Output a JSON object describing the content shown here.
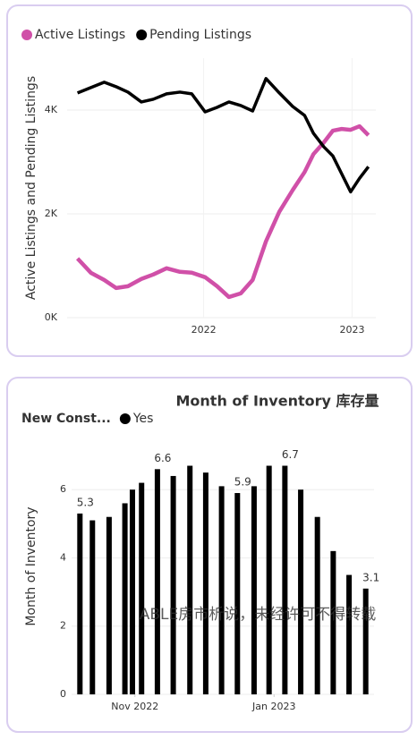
{
  "chart_data": [
    {
      "type": "line",
      "x": [
        2021.15,
        2021.24,
        2021.33,
        2021.41,
        2021.49,
        2021.58,
        2021.66,
        2021.75,
        2021.84,
        2021.92,
        2022.01,
        2022.09,
        2022.17,
        2022.25,
        2022.33,
        2022.42,
        2022.51,
        2022.6,
        2022.68,
        2022.74,
        2022.81,
        2022.87,
        2022.93,
        2022.99,
        2023.05,
        2023.11
      ],
      "series": [
        {
          "name": "Active Listings",
          "color": "#d050a8",
          "values": [
            1140,
            865,
            727,
            571,
            606,
            745,
            831,
            952,
            883,
            866,
            779,
            606,
            398,
            468,
            727,
            1472,
            2043,
            2459,
            2805,
            3152,
            3377,
            3602,
            3636,
            3619,
            3688,
            3515
          ]
        },
        {
          "name": "Pending Listings",
          "color": "#000000",
          "values": [
            4329,
            4433,
            4537,
            4450,
            4346,
            4156,
            4208,
            4312,
            4346,
            4312,
            3965,
            4052,
            4156,
            4087,
            3983,
            4606,
            4329,
            4069,
            3896,
            3550,
            3290,
            3117,
            2771,
            2424,
            2684,
            2909
          ]
        }
      ],
      "y_label": "Active Listings and Pending Listings",
      "xlim": [
        2021.08,
        2023.16
      ],
      "xticks": [
        2022,
        2023
      ],
      "ylim": [
        0,
        5000
      ],
      "yticks": [
        {
          "value": 0,
          "label": "0K"
        },
        {
          "value": 2000,
          "label": "2K"
        },
        {
          "value": 4000,
          "label": "4K"
        }
      ],
      "grid": true
    },
    {
      "type": "bar",
      "title": "Month of Inventory 库存量",
      "legend_title": "New Const...",
      "series": [
        {
          "name": "Yes",
          "color": "#000000",
          "values": [
            5.3,
            5.1,
            5.2,
            5.6,
            6.0,
            6.2,
            6.6,
            6.4,
            6.7,
            6.5,
            6.1,
            5.9,
            6.1,
            6.7,
            6.7,
            6.0,
            5.2,
            4.2,
            3.5,
            3.1
          ],
          "value_labels": [
            "5.3",
            null,
            null,
            null,
            null,
            null,
            "6.6",
            null,
            null,
            null,
            null,
            "5.9",
            null,
            null,
            "6.7",
            null,
            null,
            null,
            null,
            "3.1"
          ]
        }
      ],
      "x": [
        2022.767,
        2022.782,
        2022.802,
        2022.821,
        2022.83,
        2022.841,
        2022.86,
        2022.879,
        2022.899,
        2022.918,
        2022.937,
        2022.956,
        2022.976,
        2022.994,
        2023.013,
        2023.032,
        2023.052,
        2023.071,
        2023.09,
        2023.11
      ],
      "y_label": "Month of Inventory",
      "xlim": [
        2022.757,
        2023.12
      ],
      "xticks": [
        {
          "value": 2022.833,
          "label": "Nov 2022"
        },
        {
          "value": 2023.0,
          "label": "Jan 2023"
        }
      ],
      "ylim": [
        0,
        7.5
      ],
      "yticks": [
        0,
        2,
        4,
        6
      ],
      "grid": true,
      "watermark": "ABLE房市析说，未经许可不得转载"
    }
  ]
}
